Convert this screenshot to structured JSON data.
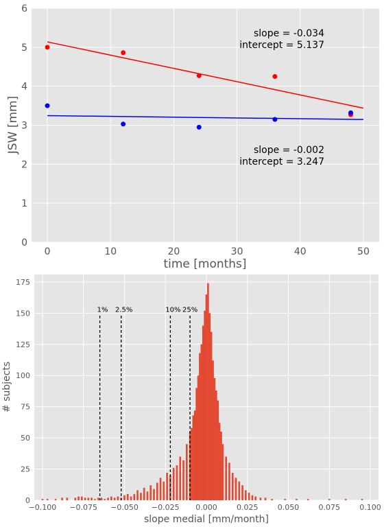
{
  "chart_data": [
    {
      "type": "scatter",
      "xlabel": "time [months]",
      "ylabel": "JSW [mm]",
      "xlim": [
        -2.5,
        52.5
      ],
      "ylim": [
        0,
        6
      ],
      "xticks": [
        0,
        10,
        20,
        30,
        40,
        50
      ],
      "yticks": [
        0,
        1,
        2,
        3,
        4,
        5,
        6
      ],
      "grid": true,
      "series": [
        {
          "color": "#ff0000",
          "points": [
            [
              0,
              5.0
            ],
            [
              12,
              4.86
            ],
            [
              24,
              4.27
            ],
            [
              36,
              4.25
            ],
            [
              48,
              3.27
            ]
          ],
          "fit": {
            "slope": -0.034,
            "intercept": 5.137,
            "x_range": [
              0,
              50
            ]
          },
          "annotation": [
            "slope = -0.034",
            "intercept = 5.137"
          ]
        },
        {
          "color": "#0000ff",
          "points": [
            [
              0,
              3.5
            ],
            [
              12,
              3.03
            ],
            [
              24,
              2.95
            ],
            [
              36,
              3.15
            ],
            [
              48,
              3.32
            ]
          ],
          "fit": {
            "slope": -0.002,
            "intercept": 3.247,
            "x_range": [
              0,
              50
            ]
          },
          "annotation": [
            "slope = -0.002",
            "intercept = 3.247"
          ]
        }
      ]
    },
    {
      "type": "histogram",
      "xlabel": "slope medial [mm/month]",
      "ylabel": "# subjects",
      "xlim": [
        -0.105,
        0.105
      ],
      "ylim": [
        0,
        181
      ],
      "xticks": [
        -0.1,
        -0.075,
        -0.05,
        -0.025,
        0.0,
        0.025,
        0.05,
        0.075,
        0.1
      ],
      "xtick_labels": [
        "−0.100",
        "−0.075",
        "−0.050",
        "−0.025",
        "0.000",
        "0.025",
        "0.050",
        "0.075",
        "0.100"
      ],
      "yticks": [
        0,
        25,
        50,
        75,
        100,
        125,
        150,
        175
      ],
      "grid": true,
      "bar_color": "#e24a33",
      "bins": [
        [
          -0.1,
          1
        ],
        [
          -0.097,
          1
        ],
        [
          -0.092,
          1
        ],
        [
          -0.088,
          2
        ],
        [
          -0.085,
          2
        ],
        [
          -0.08,
          2
        ],
        [
          -0.078,
          3
        ],
        [
          -0.076,
          3
        ],
        [
          -0.074,
          2
        ],
        [
          -0.072,
          2
        ],
        [
          -0.07,
          2
        ],
        [
          -0.068,
          1
        ],
        [
          -0.066,
          2
        ],
        [
          -0.064,
          2
        ],
        [
          -0.062,
          1
        ],
        [
          -0.06,
          2
        ],
        [
          -0.058,
          3
        ],
        [
          -0.056,
          2
        ],
        [
          -0.054,
          3
        ],
        [
          -0.052,
          2
        ],
        [
          -0.05,
          4
        ],
        [
          -0.048,
          5
        ],
        [
          -0.046,
          3
        ],
        [
          -0.044,
          5
        ],
        [
          -0.042,
          8
        ],
        [
          -0.04,
          6
        ],
        [
          -0.038,
          10
        ],
        [
          -0.036,
          7
        ],
        [
          -0.034,
          12
        ],
        [
          -0.032,
          9
        ],
        [
          -0.03,
          14
        ],
        [
          -0.028,
          18
        ],
        [
          -0.026,
          15
        ],
        [
          -0.024,
          22
        ],
        [
          -0.022,
          20
        ],
        [
          -0.02,
          26
        ],
        [
          -0.018,
          28
        ],
        [
          -0.016,
          35
        ],
        [
          -0.014,
          32
        ],
        [
          -0.012,
          45
        ],
        [
          -0.01,
          55
        ],
        [
          -0.009,
          58
        ],
        [
          -0.008,
          68
        ],
        [
          -0.007,
          72
        ],
        [
          -0.006,
          90
        ],
        [
          -0.005,
          100
        ],
        [
          -0.004,
          118
        ],
        [
          -0.003,
          125
        ],
        [
          -0.002,
          140
        ],
        [
          -0.001,
          152
        ],
        [
          0.0,
          165
        ],
        [
          0.001,
          174
        ],
        [
          0.002,
          150
        ],
        [
          0.003,
          135
        ],
        [
          0.004,
          112
        ],
        [
          0.005,
          98
        ],
        [
          0.006,
          88
        ],
        [
          0.007,
          80
        ],
        [
          0.008,
          62
        ],
        [
          0.009,
          55
        ],
        [
          0.01,
          45
        ],
        [
          0.012,
          35
        ],
        [
          0.014,
          30
        ],
        [
          0.016,
          22
        ],
        [
          0.018,
          18
        ],
        [
          0.02,
          15
        ],
        [
          0.022,
          12
        ],
        [
          0.024,
          8
        ],
        [
          0.026,
          6
        ],
        [
          0.028,
          4
        ],
        [
          0.03,
          3
        ],
        [
          0.033,
          2
        ],
        [
          0.036,
          2
        ],
        [
          0.04,
          1
        ],
        [
          0.048,
          1
        ],
        [
          0.055,
          1
        ],
        [
          0.062,
          1
        ],
        [
          0.075,
          1
        ],
        [
          0.085,
          1
        ],
        [
          0.095,
          1
        ]
      ],
      "percentile_lines": [
        {
          "label": "1%",
          "x": -0.065
        },
        {
          "label": "2.5%",
          "x": -0.052
        },
        {
          "label": "10%",
          "x": -0.022
        },
        {
          "label": "25%",
          "x": -0.01
        }
      ]
    }
  ]
}
